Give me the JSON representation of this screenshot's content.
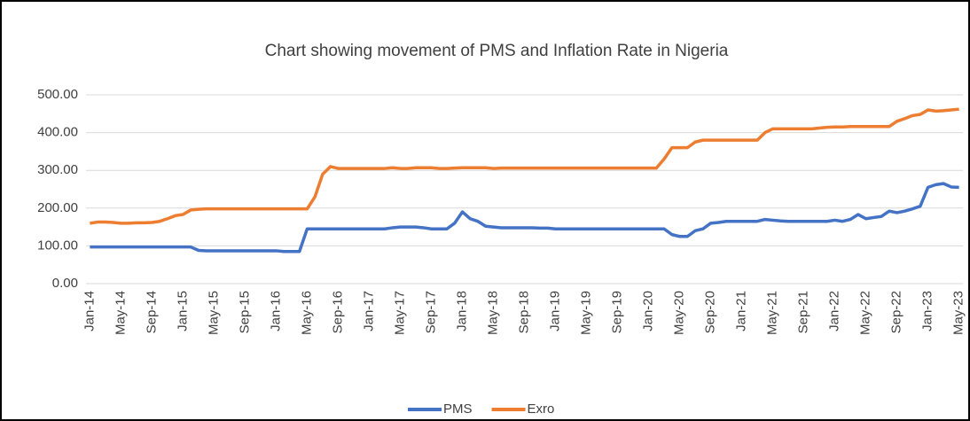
{
  "chart_data": {
    "type": "line",
    "title": "Chart showing movement of PMS and Inflation Rate in Nigeria",
    "categories": [
      "Jan-14",
      null,
      null,
      null,
      "May-14",
      null,
      null,
      null,
      "Sep-14",
      null,
      null,
      null,
      "Jan-15",
      null,
      null,
      null,
      "May-15",
      null,
      null,
      null,
      "Sep-15",
      null,
      null,
      null,
      "Jan-16",
      null,
      null,
      null,
      "May-16",
      null,
      null,
      null,
      "Sep-16",
      null,
      null,
      null,
      "Jan-17",
      null,
      null,
      null,
      "May-17",
      null,
      null,
      null,
      "Sep-17",
      null,
      null,
      null,
      "Jan-18",
      null,
      null,
      null,
      "May-18",
      null,
      null,
      null,
      "Sep-18",
      null,
      null,
      null,
      "Jan-19",
      null,
      null,
      null,
      "May-19",
      null,
      null,
      null,
      "Sep-19",
      null,
      null,
      null,
      "Jan-20",
      null,
      null,
      null,
      "May-20",
      null,
      null,
      null,
      "Sep-20",
      null,
      null,
      null,
      "Jan-21",
      null,
      null,
      null,
      "May-21",
      null,
      null,
      null,
      "Sep-21",
      null,
      null,
      null,
      "Jan-22",
      null,
      null,
      null,
      "May-22",
      null,
      null,
      null,
      "Sep-22",
      null,
      null,
      null,
      "Jan-23",
      null,
      null,
      null,
      "May-23"
    ],
    "series": [
      {
        "name": "PMS",
        "color": "#4472c4",
        "values": [
          97,
          97,
          97,
          97,
          97,
          97,
          97,
          97,
          97,
          97,
          97,
          97,
          97,
          97,
          88,
          87,
          87,
          87,
          87,
          87,
          87,
          87,
          87,
          87,
          87,
          85,
          85,
          85,
          145,
          145,
          145,
          145,
          145,
          145,
          145,
          145,
          145,
          145,
          145,
          148,
          150,
          150,
          150,
          148,
          145,
          145,
          145,
          160,
          190,
          172,
          165,
          152,
          150,
          148,
          148,
          148,
          148,
          148,
          147,
          147,
          145,
          145,
          145,
          145,
          145,
          145,
          145,
          145,
          145,
          145,
          145,
          145,
          145,
          145,
          145,
          130,
          125,
          125,
          140,
          145,
          160,
          162,
          165,
          165,
          165,
          165,
          165,
          170,
          168,
          166,
          165,
          165,
          165,
          165,
          165,
          165,
          168,
          165,
          170,
          183,
          172,
          175,
          178,
          192,
          188,
          192,
          198,
          205,
          255,
          262,
          265,
          256,
          255
        ]
      },
      {
        "name": "Exro",
        "color": "#ed7d31",
        "values": [
          160,
          163,
          163,
          162,
          160,
          160,
          161,
          161,
          162,
          165,
          172,
          180,
          183,
          195,
          197,
          198,
          198,
          198,
          198,
          198,
          198,
          198,
          198,
          198,
          198,
          198,
          198,
          198,
          198,
          230,
          290,
          310,
          305,
          305,
          305,
          305,
          305,
          305,
          305,
          307,
          305,
          305,
          307,
          307,
          307,
          305,
          305,
          306,
          307,
          307,
          307,
          307,
          305,
          306,
          306,
          306,
          306,
          306,
          306,
          306,
          306,
          306,
          306,
          306,
          306,
          306,
          306,
          306,
          306,
          306,
          306,
          306,
          306,
          306,
          330,
          360,
          360,
          360,
          375,
          380,
          380,
          380,
          380,
          380,
          380,
          380,
          380,
          400,
          410,
          410,
          410,
          410,
          410,
          410,
          412,
          414,
          415,
          415,
          416,
          416,
          416,
          416,
          416,
          416,
          430,
          437,
          445,
          448,
          460,
          457,
          458,
          460,
          462
        ]
      }
    ],
    "ylim": [
      0,
      500
    ],
    "yticks": [
      {
        "value": 0,
        "label": "0.00"
      },
      {
        "value": 100,
        "label": "100.00"
      },
      {
        "value": 200,
        "label": "200.00"
      },
      {
        "value": 300,
        "label": "300.00"
      },
      {
        "value": 400,
        "label": "400.00"
      },
      {
        "value": 500,
        "label": "500.00"
      }
    ],
    "grid": true,
    "legend": "bottom"
  }
}
